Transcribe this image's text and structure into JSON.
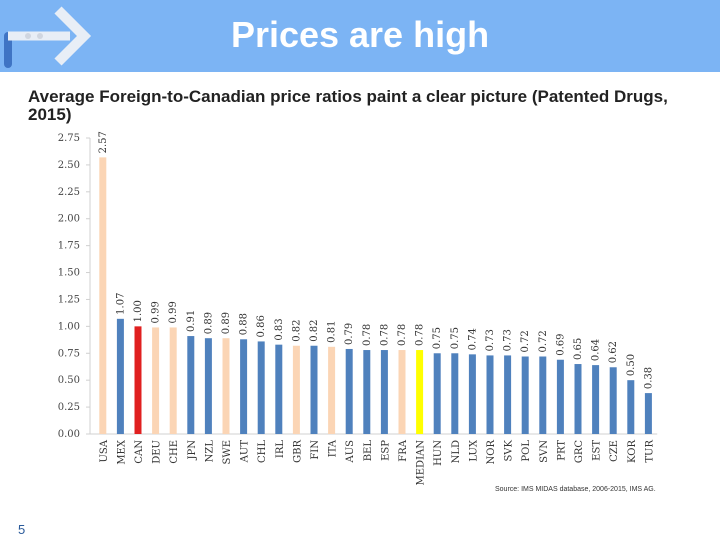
{
  "slide": {
    "title": "Prices are high",
    "subtitle": "Average Foreign-to-Canadian price ratios paint a clear picture (Patented Drugs, 2015)",
    "source": "Source: IMS MIDAS database, 2006-2015, IMS AG.",
    "page_number": "5"
  },
  "colors": {
    "header": "#7cb4f4",
    "bar_default": "#4f81bd",
    "bar_highlight_peach": "#fbd5b5",
    "bar_canada": "#e02020",
    "bar_median": "#ffff00"
  },
  "icons": [
    "arrow-logo-icon"
  ],
  "chart_data": {
    "type": "bar",
    "categories": [
      "USA",
      "MEX",
      "CAN",
      "DEU",
      "CHE",
      "JPN",
      "NZL",
      "SWE",
      "AUT",
      "CHL",
      "IRL",
      "GBR",
      "FIN",
      "ITA",
      "AUS",
      "BEL",
      "ESP",
      "FRA",
      "MEDIAN",
      "HUN",
      "NLD",
      "LUX",
      "NOR",
      "SVK",
      "POL",
      "SVN",
      "PRT",
      "GRC",
      "EST",
      "CZE",
      "KOR",
      "TUR"
    ],
    "values": [
      2.57,
      1.07,
      1.0,
      0.99,
      0.99,
      0.91,
      0.89,
      0.89,
      0.88,
      0.86,
      0.83,
      0.82,
      0.82,
      0.81,
      0.79,
      0.78,
      0.78,
      0.78,
      0.78,
      0.75,
      0.75,
      0.74,
      0.73,
      0.73,
      0.72,
      0.72,
      0.69,
      0.65,
      0.64,
      0.62,
      0.5,
      0.38
    ],
    "value_labels": [
      "2.57",
      "1.07",
      "1.00",
      "0.99",
      "0.99",
      "0.91",
      "0.89",
      "0.89",
      "0.88",
      "0.86",
      "0.83",
      "0.82",
      "0.82",
      "0.81",
      "0.79",
      "0.78",
      "0.78",
      "0.78",
      "0.78",
      "0.75",
      "0.75",
      "0.74",
      "0.73",
      "0.73",
      "0.72",
      "0.72",
      "0.69",
      "0.65",
      "0.64",
      "0.62",
      "0.50",
      "0.38"
    ],
    "bar_colors": [
      "peach",
      "blue",
      "red",
      "peach",
      "peach",
      "blue",
      "blue",
      "peach",
      "blue",
      "blue",
      "blue",
      "peach",
      "blue",
      "peach",
      "blue",
      "blue",
      "blue",
      "peach",
      "yellow",
      "blue",
      "blue",
      "blue",
      "blue",
      "blue",
      "blue",
      "blue",
      "blue",
      "blue",
      "blue",
      "blue",
      "blue",
      "blue"
    ],
    "yticks": [
      "0.00",
      "0.25",
      "0.50",
      "0.75",
      "1.00",
      "1.25",
      "1.50",
      "1.75",
      "2.00",
      "2.25",
      "2.50",
      "2.75"
    ],
    "ylim": [
      0,
      2.75
    ],
    "grid": false,
    "legend": "none",
    "xlabel": "",
    "ylabel": ""
  }
}
